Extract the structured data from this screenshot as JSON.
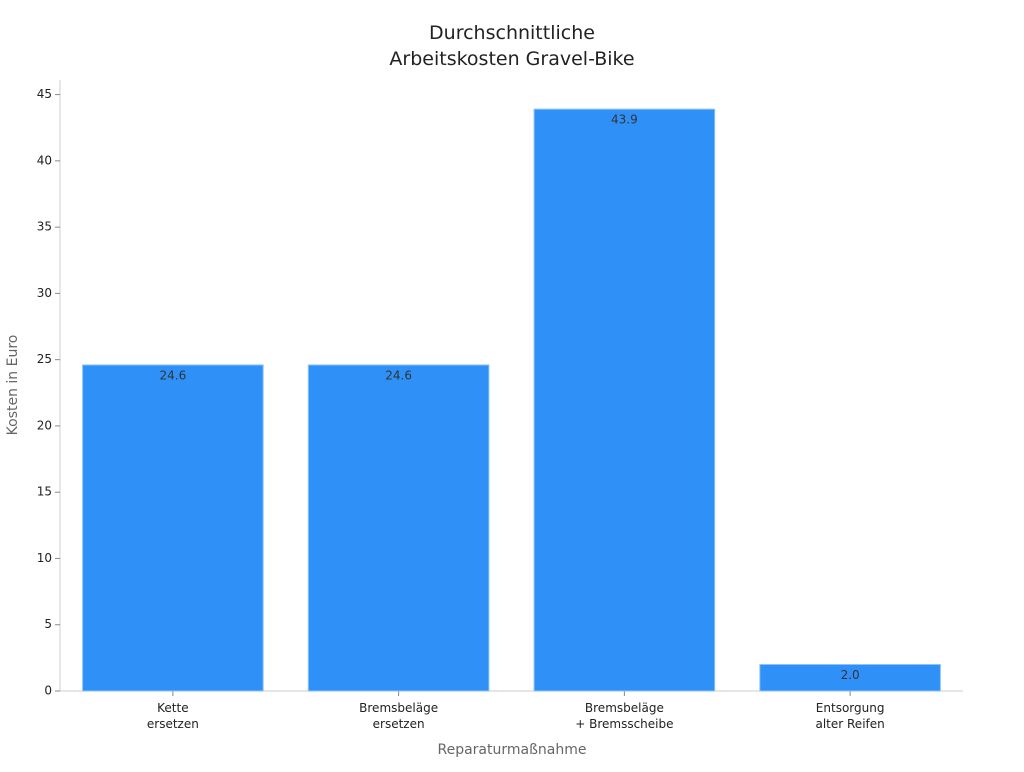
{
  "chart_data": {
    "type": "bar",
    "title": "Durchschnittliche\nArbeitskosten Gravel-Bike",
    "x_label": "Reparaturmaßnahme",
    "y_label": "Kosten in Euro",
    "categories": [
      "Kette\nersetzen",
      "Bremsbeläge\nersetzen",
      "Bremsbeläge\n+ Bremsscheibe",
      "Entsorgung\nalter Reifen"
    ],
    "values": [
      24.6,
      24.6,
      43.9,
      2.0
    ],
    "value_labels": [
      "24.6",
      "24.6",
      "43.9",
      "2.0"
    ],
    "color": "#2f91f8",
    "ylim": [
      0,
      46.1
    ],
    "yticks": [
      0,
      5,
      10,
      15,
      20,
      25,
      30,
      35,
      40,
      45
    ],
    "grid": false
  }
}
